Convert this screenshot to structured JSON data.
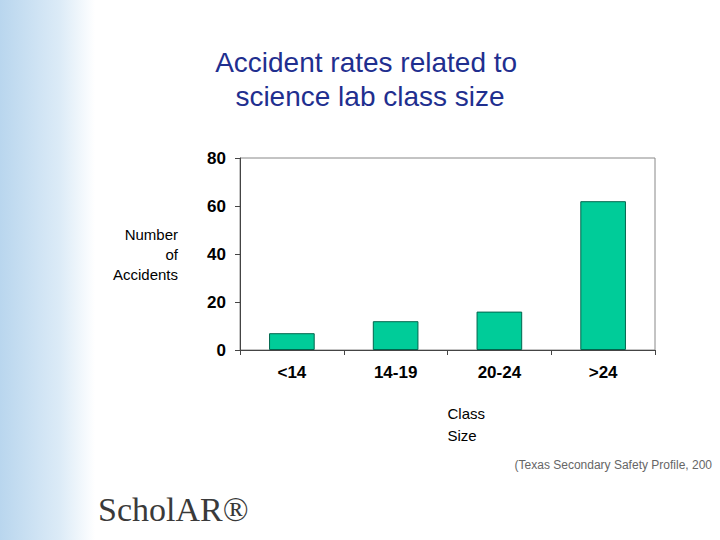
{
  "chart_data": {
    "type": "bar",
    "title": "Accident rates related to science lab class size",
    "x_label": "Class Size",
    "y_label": "Number of Accidents",
    "categories": [
      "<14",
      "14-19",
      "20-24",
      ">24"
    ],
    "values": [
      7,
      12,
      16,
      62
    ],
    "color": "#00cc99",
    "ylim": [
      0,
      80
    ],
    "yticks": [
      0,
      20,
      40,
      60,
      80
    ],
    "grid": false,
    "annotations": [
      "(Texas Secondary Safety Profile, 200",
      "ScholAR®"
    ]
  }
}
